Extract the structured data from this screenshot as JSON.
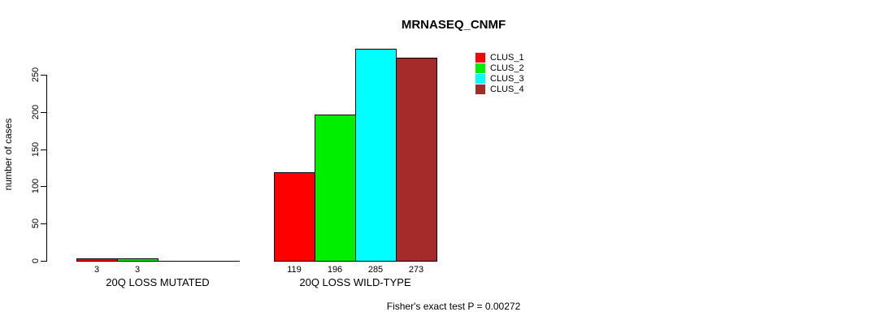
{
  "chart_data": {
    "type": "bar",
    "title": "MRNASEQ_CNMF",
    "ylabel": "number of cases",
    "xlabel": "",
    "categories": [
      "20Q LOSS MUTATED",
      "20Q LOSS WILD-TYPE"
    ],
    "series": [
      {
        "name": "CLUS_1",
        "color": "#ff0000",
        "values": [
          3,
          119
        ]
      },
      {
        "name": "CLUS_2",
        "color": "#00ee00",
        "values": [
          3,
          196
        ]
      },
      {
        "name": "CLUS_3",
        "color": "#00ffff",
        "values": [
          0,
          285
        ]
      },
      {
        "name": "CLUS_4",
        "color": "#a52a2a",
        "values": [
          0,
          273
        ]
      }
    ],
    "yticks": [
      0,
      50,
      100,
      150,
      200,
      250
    ],
    "ylim": [
      0,
      285
    ],
    "grid": false,
    "legend_position": "top-right",
    "bar_borders": "#000000",
    "annotation": "Fisher's exact test P = 0.00272"
  }
}
